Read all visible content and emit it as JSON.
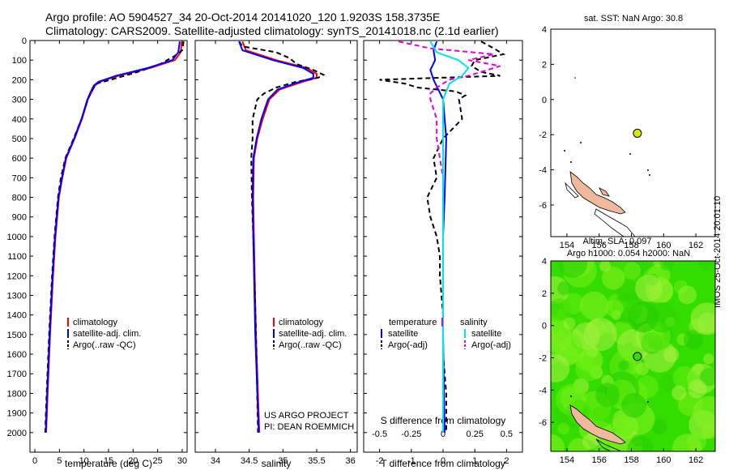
{
  "header": {
    "line1": "Argo profile: AO 5904527_34 20-Oct-2014 20141020_120 1.9203S 158.3735E",
    "line2": "Climatology: CARS2009. Satellite-adjusted climatology: synTS_20141018.nc (2.1d earlier)"
  },
  "credit": "IMOS 25-Oct-2014 20:01:10",
  "colors": {
    "climatology": "#ff0000",
    "satellite": "#0000ff",
    "argo": "#000000",
    "satellite_diff": "#00e5e5",
    "argo_diff": "#e000e0",
    "land": "#f0b89c",
    "sla_green": "#33dd00",
    "float_marker": "#d8e800"
  },
  "chart_data": [
    {
      "type": "line",
      "xlabel": "temperature (deg C)",
      "ylabel": "",
      "xlim": [
        -1,
        31
      ],
      "ylim": [
        2100,
        0
      ],
      "xticks": [
        "0",
        "5",
        "10",
        "15",
        "20",
        "25",
        "30"
      ],
      "yticks": [
        "0",
        "100",
        "200",
        "300",
        "400",
        "500",
        "600",
        "700",
        "800",
        "900",
        "1000",
        "1100",
        "1200",
        "1300",
        "1400",
        "1500",
        "1600",
        "1700",
        "1800",
        "1900",
        "2000"
      ],
      "legend": [
        "climatology",
        "satellite-adj. clim.",
        "Argo(..raw -QC)"
      ],
      "series": [
        {
          "name": "climatology",
          "depth": [
            5,
            60,
            100,
            140,
            180,
            210,
            230,
            260,
            300,
            400,
            500,
            600,
            700,
            800,
            1000,
            1200,
            1500,
            1800,
            2000
          ],
          "values": [
            29.9,
            29.7,
            28.5,
            23.5,
            17,
            13.3,
            12.2,
            11.6,
            10.8,
            9.6,
            8.1,
            6.4,
            5.6,
            4.9,
            4.2,
            3.7,
            3.1,
            2.6,
            2.3
          ]
        },
        {
          "name": "satellite-adj. clim.",
          "depth": [
            5,
            60,
            100,
            140,
            180,
            210,
            230,
            260,
            300,
            400,
            500,
            600,
            700,
            800,
            1000,
            1200,
            1500,
            1800,
            2000
          ],
          "values": [
            29.5,
            29.2,
            28,
            23,
            16.5,
            13,
            12,
            11.4,
            10.7,
            9.5,
            8,
            6.3,
            5.5,
            4.8,
            4.1,
            3.6,
            3,
            2.5,
            2.2
          ]
        },
        {
          "name": "Argo(..raw -QC)",
          "depth": [
            5,
            50,
            80,
            120,
            160,
            200,
            220,
            240,
            270,
            300,
            400,
            500,
            600,
            700,
            800,
            1000,
            1200,
            1500,
            1800,
            2000
          ],
          "values": [
            30.3,
            30,
            28.4,
            25.5,
            21,
            15.5,
            12.5,
            12,
            11.3,
            10.8,
            9.5,
            7.9,
            6.2,
            5.3,
            4.7,
            4,
            3.5,
            2.9,
            2.4,
            2.1
          ]
        }
      ]
    },
    {
      "type": "line",
      "xlabel": "salinity",
      "ylabel": "",
      "xlim": [
        33.7,
        36.1
      ],
      "ylim": [
        2100,
        0
      ],
      "xticks": [
        "34",
        "34.5",
        "35",
        "35.5",
        "36"
      ],
      "legend": [
        "climatology",
        "satellite-adj. clim.",
        "Argo(..raw -QC)"
      ],
      "annotation": [
        "US ARGO PROJECT",
        "PI: DEAN ROEMMICH"
      ],
      "series": [
        {
          "name": "climatology",
          "depth": [
            5,
            50,
            100,
            140,
            170,
            190,
            210,
            250,
            300,
            400,
            500,
            600,
            800,
            1000,
            1500,
            2000
          ],
          "values": [
            34.4,
            34.45,
            34.9,
            35.35,
            35.5,
            35.5,
            35.3,
            34.95,
            34.8,
            34.7,
            34.62,
            34.57,
            34.56,
            34.57,
            34.6,
            34.65
          ]
        },
        {
          "name": "satellite-adj. clim.",
          "depth": [
            5,
            50,
            100,
            140,
            170,
            190,
            210,
            250,
            300,
            400,
            500,
            600,
            800,
            1000,
            1500,
            2000
          ],
          "values": [
            34.35,
            34.4,
            34.85,
            35.3,
            35.45,
            35.45,
            35.25,
            34.92,
            34.78,
            34.68,
            34.61,
            34.56,
            34.55,
            34.56,
            34.59,
            34.64
          ]
        },
        {
          "name": "Argo(..raw -QC)",
          "depth": [
            5,
            30,
            60,
            90,
            120,
            150,
            175,
            190,
            210,
            240,
            270,
            300,
            400,
            500,
            600,
            800,
            1000,
            1500,
            2000
          ],
          "values": [
            34.35,
            34.4,
            34.9,
            35.1,
            35.2,
            35.45,
            35.6,
            35.52,
            35.2,
            34.9,
            34.72,
            34.62,
            34.55,
            34.55,
            34.53,
            34.54,
            34.56,
            34.6,
            34.63
          ]
        }
      ]
    },
    {
      "type": "line",
      "xlabel": "T difference from climatology",
      "xlabel_top": "S difference from climatology",
      "xlim": [
        -2.5,
        2.5
      ],
      "ylim": [
        2100,
        0
      ],
      "xticks": [
        "-2",
        "-1",
        "0",
        "1",
        "2"
      ],
      "xticks_top": [
        "-0.5",
        "-0.25",
        "0",
        "0.25",
        "0.5"
      ],
      "legend_title_left": "temperature",
      "legend_title_right": "salinity",
      "legend_left": [
        "satellite",
        "Argo(-adj)"
      ],
      "legend_right": [
        "satellite",
        "Argo(-adj)"
      ],
      "series": [
        {
          "name": "temperature satellite",
          "depth": [
            5,
            50,
            100,
            150,
            200,
            300,
            500,
            800,
            1000,
            1500,
            2000
          ],
          "values": [
            -0.2,
            -0.3,
            -0.25,
            -0.4,
            -0.3,
            0,
            0.1,
            0.05,
            0,
            0,
            0.05
          ]
        },
        {
          "name": "temperature Argo(-adj)",
          "depth": [
            5,
            40,
            70,
            100,
            130,
            160,
            180,
            200,
            220,
            240,
            260,
            280,
            300,
            400,
            500,
            600,
            700,
            800,
            900,
            1000,
            1100,
            1200,
            1400,
            1600,
            1800,
            2000
          ],
          "values": [
            1.2,
            1.6,
            1.9,
            1.0,
            0.9,
            1.2,
            1.8,
            -2.0,
            -1.2,
            -0.8,
            0.4,
            0.7,
            0.5,
            0.6,
            0,
            -0.3,
            -0.2,
            -0.5,
            -0.4,
            -0.2,
            -0.1,
            -0.1,
            0,
            0,
            0.1,
            0.1
          ]
        },
        {
          "name": "salinity satellite",
          "depth": [
            5,
            60,
            100,
            140,
            180,
            220,
            300,
            500,
            800,
            1000,
            1500,
            2000
          ],
          "values": [
            -0.1,
            -0.05,
            0.12,
            0.2,
            0.15,
            0.05,
            0,
            0,
            0,
            0,
            0,
            0
          ]
        },
        {
          "name": "salinity Argo(-adj)",
          "depth": [
            5,
            40,
            70,
            100,
            130,
            160,
            180,
            200,
            240,
            270,
            300,
            400,
            500,
            700,
            1000,
            1500,
            2000
          ],
          "values": [
            -0.35,
            -0.1,
            0.4,
            0.2,
            0.45,
            0.3,
            0.2,
            0.05,
            -0.05,
            -0.1,
            -0.1,
            -0.05,
            -0.05,
            0,
            0,
            0,
            0
          ]
        }
      ]
    },
    {
      "type": "map",
      "title": "sat. SST: NaN Argo: 30.8",
      "xlim": [
        153,
        163.2
      ],
      "ylim": [
        -7.8,
        4
      ],
      "xticks": [
        "154",
        "156",
        "158",
        "160",
        "162"
      ],
      "yticks": [
        "4",
        "2",
        "0",
        "-2",
        "-4",
        "-6"
      ],
      "float_position": {
        "lon": 158.37,
        "lat": -1.92
      }
    },
    {
      "type": "heatmap",
      "title_line1": "Altim. SLA: 0.097",
      "title_line2": "Argo h1000: 0.054 h2000: NaN",
      "xlim": [
        153,
        163.2
      ],
      "ylim": [
        -7.8,
        4
      ],
      "xticks": [
        "154",
        "156",
        "158",
        "160",
        "162"
      ],
      "yticks": [
        "4",
        "2",
        "0",
        "-2",
        "-4",
        "-6"
      ],
      "float_position": {
        "lon": 158.37,
        "lat": -1.92
      }
    }
  ]
}
